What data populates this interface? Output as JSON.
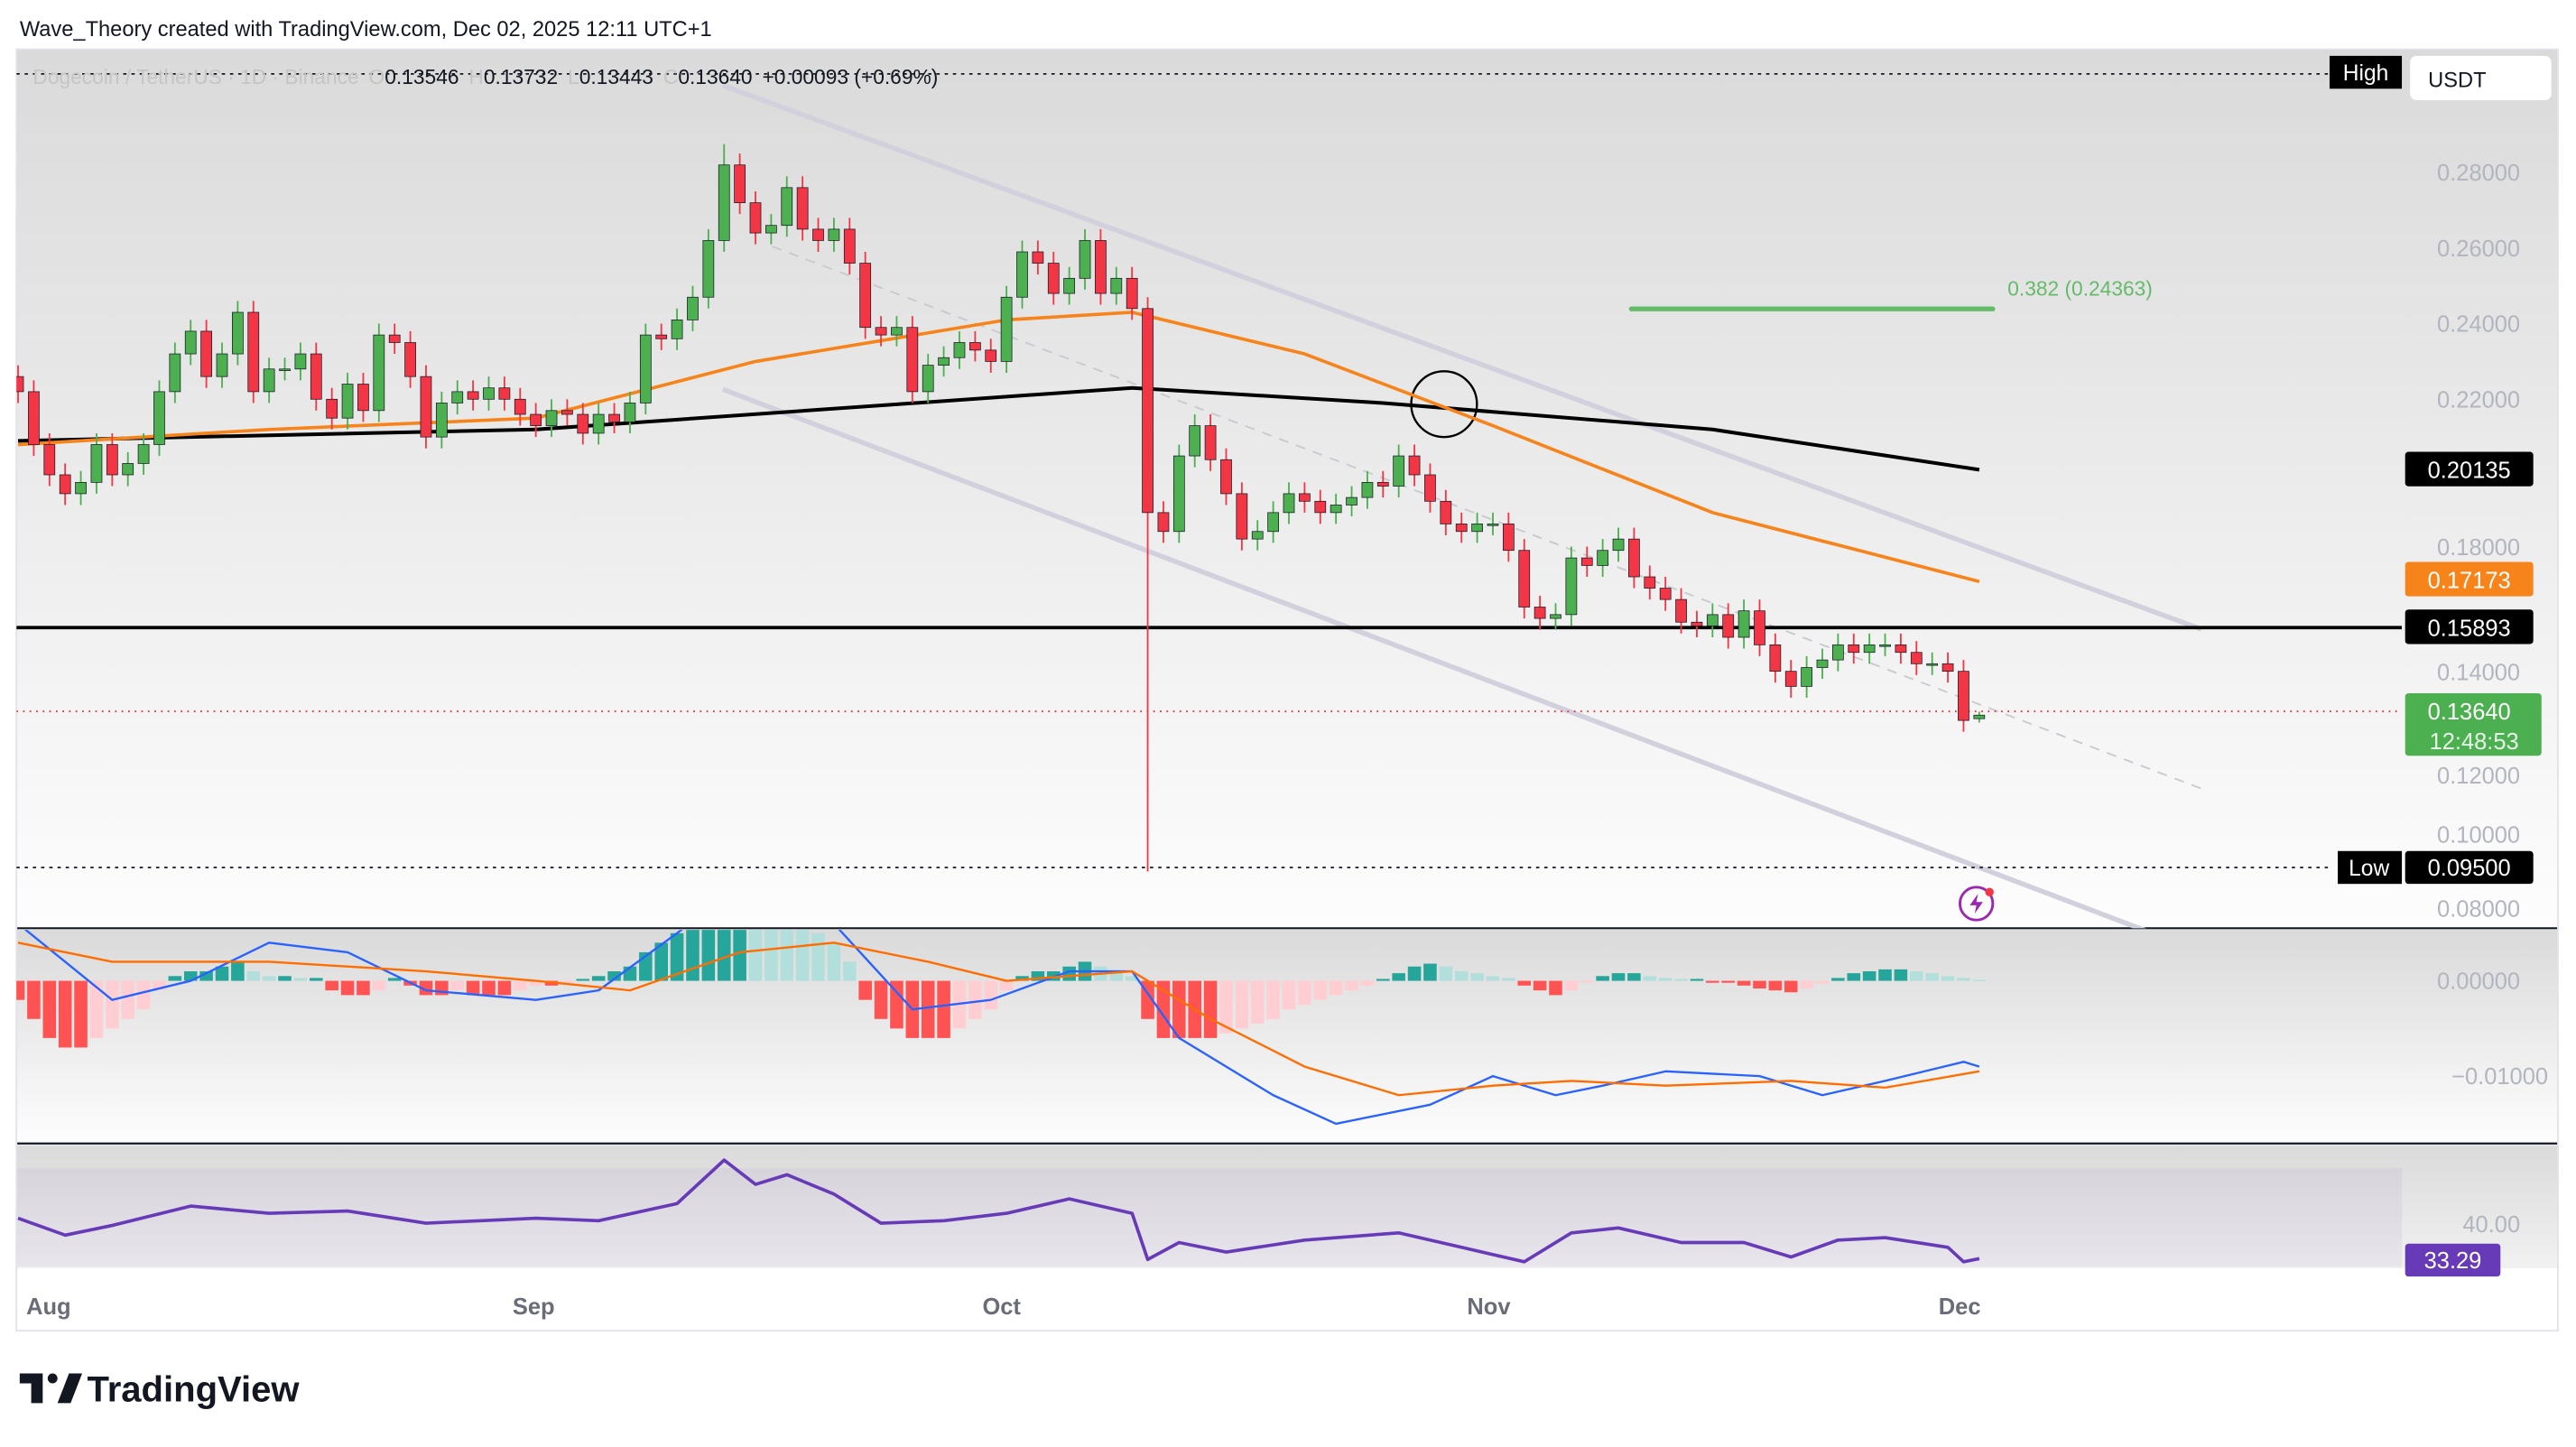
{
  "header": {
    "caption": "Wave_Theory created with TradingView.com, Dec 02, 2025 12:11 UTC+1"
  },
  "legend": {
    "symbol": "Dogecoin / TetherUS · 1D · Binance",
    "o_label": "O",
    "open": "0.13546",
    "h_label": "H",
    "high": "0.13732",
    "l_label": "L",
    "low": "0.13443",
    "c_label": "C",
    "close": "0.13640",
    "change": "+0.00093 (+0.69%)"
  },
  "price_axis": {
    "currency": "USDT",
    "ticks": [
      "0.28000",
      "0.26000",
      "0.24000",
      "0.22000",
      "0.18000",
      "0.14000",
      "0.12000",
      "0.10000",
      "0.08000"
    ],
    "high_tag": "High",
    "low_tag": "Low",
    "low_value": "0.09500",
    "sma200_value": "0.20135",
    "ema50_value": "0.17173",
    "support_value": "0.15893",
    "last_price": "0.13640",
    "countdown": "12:48:53"
  },
  "fib": {
    "label": "0.382 (0.24363)",
    "level": 0.24363
  },
  "macd_axis": {
    "ticks": [
      "0.00000",
      "−0.01000"
    ]
  },
  "rsi_axis": {
    "tick": "40.00",
    "value": "33.29"
  },
  "time_axis": [
    "Aug",
    "Sep",
    "Oct",
    "Nov",
    "Dec"
  ],
  "footer": {
    "brand": "TradingView"
  },
  "colors": {
    "up": "#4caf50",
    "down": "#f23645",
    "ema50": "#f7841a",
    "sma200": "#000000",
    "fib": "#66bb6a",
    "rsi": "#673ab7",
    "macd": "#2962ff",
    "signal": "#ff6d00",
    "channel": "#d1d0dc"
  },
  "chart_data": {
    "type": "candlestick",
    "symbol": "Dogecoin / TetherUS",
    "interval": "1D",
    "ylim": [
      0.08,
      0.29
    ],
    "dates": [
      "Jul 30",
      "Jul 31",
      "Aug 1",
      "Aug 2",
      "Aug 3",
      "Aug 4",
      "Aug 5",
      "Aug 6",
      "Aug 7",
      "Aug 8",
      "Aug 9",
      "Aug 10",
      "Aug 11",
      "Aug 12",
      "Aug 13",
      "Aug 14",
      "Aug 15",
      "Aug 16",
      "Aug 17",
      "Aug 18",
      "Aug 19",
      "Aug 20",
      "Aug 21",
      "Aug 22",
      "Aug 23",
      "Aug 24",
      "Aug 25",
      "Aug 26",
      "Aug 27",
      "Aug 28",
      "Aug 29",
      "Aug 30",
      "Aug 31",
      "Sep 1",
      "Sep 2",
      "Sep 3",
      "Sep 4",
      "Sep 5",
      "Sep 6",
      "Sep 7",
      "Sep 8",
      "Sep 9",
      "Sep 10",
      "Sep 11",
      "Sep 12",
      "Sep 13",
      "Sep 14",
      "Sep 15",
      "Sep 16",
      "Sep 17",
      "Sep 18",
      "Sep 19",
      "Sep 20",
      "Sep 21",
      "Sep 22",
      "Sep 23",
      "Sep 24",
      "Sep 25",
      "Sep 26",
      "Sep 27",
      "Sep 28",
      "Sep 29",
      "Sep 30",
      "Oct 1",
      "Oct 2",
      "Oct 3",
      "Oct 4",
      "Oct 5",
      "Oct 6",
      "Oct 7",
      "Oct 8",
      "Oct 9",
      "Oct 10",
      "Oct 11",
      "Oct 12",
      "Oct 13",
      "Oct 14",
      "Oct 15",
      "Oct 16",
      "Oct 17",
      "Oct 18",
      "Oct 19",
      "Oct 20",
      "Oct 21",
      "Oct 22",
      "Oct 23",
      "Oct 24",
      "Oct 25",
      "Oct 26",
      "Oct 27",
      "Oct 28",
      "Oct 29",
      "Oct 30",
      "Oct 31",
      "Nov 1",
      "Nov 2",
      "Nov 3",
      "Nov 4",
      "Nov 5",
      "Nov 6",
      "Nov 7",
      "Nov 8",
      "Nov 9",
      "Nov 10",
      "Nov 11",
      "Nov 12",
      "Nov 13",
      "Nov 14",
      "Nov 15",
      "Nov 16",
      "Nov 17",
      "Nov 18",
      "Nov 19",
      "Nov 20",
      "Nov 21",
      "Nov 22",
      "Nov 23",
      "Nov 24",
      "Nov 25",
      "Nov 26",
      "Nov 27",
      "Nov 28",
      "Nov 29",
      "Nov 30",
      "Dec 1",
      "Dec 2"
    ],
    "closes": [
      0.222,
      0.208,
      0.2,
      0.195,
      0.198,
      0.208,
      0.2,
      0.203,
      0.208,
      0.222,
      0.232,
      0.238,
      0.226,
      0.232,
      0.243,
      0.222,
      0.228,
      0.228,
      0.232,
      0.22,
      0.215,
      0.224,
      0.217,
      0.237,
      0.235,
      0.226,
      0.21,
      0.219,
      0.222,
      0.22,
      0.223,
      0.22,
      0.216,
      0.213,
      0.217,
      0.216,
      0.211,
      0.216,
      0.214,
      0.219,
      0.237,
      0.236,
      0.241,
      0.247,
      0.262,
      0.282,
      0.272,
      0.264,
      0.266,
      0.276,
      0.265,
      0.262,
      0.265,
      0.256,
      0.239,
      0.237,
      0.239,
      0.222,
      0.229,
      0.231,
      0.235,
      0.233,
      0.23,
      0.247,
      0.259,
      0.256,
      0.248,
      0.252,
      0.262,
      0.248,
      0.252,
      0.244,
      0.19,
      0.185,
      0.205,
      0.213,
      0.204,
      0.195,
      0.183,
      0.185,
      0.19,
      0.195,
      0.193,
      0.19,
      0.192,
      0.194,
      0.198,
      0.197,
      0.205,
      0.2,
      0.193,
      0.187,
      0.185,
      0.187,
      0.187,
      0.18,
      0.165,
      0.162,
      0.163,
      0.178,
      0.176,
      0.18,
      0.183,
      0.173,
      0.17,
      0.167,
      0.161,
      0.16,
      0.163,
      0.157,
      0.164,
      0.155,
      0.148,
      0.144,
      0.149,
      0.151,
      0.155,
      0.153,
      0.155,
      0.155,
      0.153,
      0.15,
      0.15,
      0.148,
      0.135,
      0.1364
    ],
    "last_candle": {
      "open": 0.13546,
      "high": 0.13732,
      "low": 0.13443,
      "close": 0.1364
    },
    "period_high": {
      "date": "Sep 13",
      "value": 0.2875
    },
    "period_low": {
      "date": "Oct 10",
      "value": 0.095
    },
    "ema50": [
      [
        "Jul 30",
        0.208
      ],
      [
        "Aug 15",
        0.212
      ],
      [
        "Sep 1",
        0.215
      ],
      [
        "Sep 15",
        0.23
      ],
      [
        "Oct 1",
        0.241
      ],
      [
        "Oct 9",
        0.243
      ],
      [
        "Oct 20",
        0.232
      ],
      [
        "Nov 1",
        0.213
      ],
      [
        "Nov 15",
        0.19
      ],
      [
        "Dec 2",
        0.17173
      ]
    ],
    "sma200": [
      [
        "Jul 30",
        0.209
      ],
      [
        "Sep 1",
        0.212
      ],
      [
        "Oct 9",
        0.223
      ],
      [
        "Oct 25",
        0.219
      ],
      [
        "Nov 15",
        0.212
      ],
      [
        "Dec 2",
        0.20135
      ]
    ],
    "support_level": 0.15893,
    "macd": {
      "ylim": [
        -0.0175,
        0.0055
      ],
      "histogram": [
        -0.002,
        -0.004,
        -0.006,
        -0.007,
        -0.007,
        -0.006,
        -0.005,
        -0.004,
        -0.003,
        -0.001,
        0.0005,
        0.001,
        0.001,
        0.0015,
        0.002,
        0.001,
        0.0005,
        0.0005,
        0.0003,
        0.0003,
        -0.001,
        -0.0015,
        -0.0015,
        -0.001,
        0.0003,
        -0.0005,
        -0.0015,
        -0.0015,
        -0.001,
        -0.0015,
        -0.0015,
        -0.0015,
        -0.001,
        -0.0005,
        -0.0005,
        -0.0002,
        0.0002,
        0.0005,
        0.001,
        0.0015,
        0.003,
        0.004,
        0.005,
        0.006,
        0.007,
        0.009,
        0.01,
        0.009,
        0.008,
        0.007,
        0.006,
        0.005,
        0.004,
        0.002,
        -0.002,
        -0.004,
        -0.005,
        -0.006,
        -0.006,
        -0.006,
        -0.005,
        -0.004,
        -0.003,
        -0.001,
        0.0005,
        0.001,
        0.001,
        0.0015,
        0.002,
        0.0015,
        0.001,
        0.0005,
        -0.004,
        -0.006,
        -0.006,
        -0.006,
        -0.006,
        -0.0055,
        -0.005,
        -0.0045,
        -0.004,
        -0.003,
        -0.0025,
        -0.002,
        -0.0015,
        -0.001,
        -0.0005,
        0.0002,
        0.0008,
        0.0015,
        0.0018,
        0.0015,
        0.001,
        0.0008,
        0.0005,
        0.0003,
        -0.0005,
        -0.001,
        -0.0015,
        -0.001,
        -0.0002,
        0.0005,
        0.0008,
        0.0008,
        0.0005,
        0.0003,
        0.0002,
        0.0002,
        -0.0002,
        -0.0002,
        -0.0005,
        -0.0008,
        -0.001,
        -0.0012,
        -0.0008,
        -0.0003,
        0.0003,
        0.0008,
        0.001,
        0.0012,
        0.0012,
        0.001,
        0.0008,
        0.0005,
        0.0003,
        0.0001
      ],
      "macd_line": [
        [
          "Jul 30",
          0.006
        ],
        [
          "Aug 5",
          -0.002
        ],
        [
          "Aug 10",
          0.0
        ],
        [
          "Aug 15",
          0.004
        ],
        [
          "Aug 20",
          0.003
        ],
        [
          "Aug 25",
          -0.001
        ],
        [
          "Sep 1",
          -0.002
        ],
        [
          "Sep 5",
          -0.001
        ],
        [
          "Sep 10",
          0.005
        ],
        [
          "Sep 14",
          0.01
        ],
        [
          "Sep 20",
          0.006
        ],
        [
          "Sep 25",
          -0.003
        ],
        [
          "Sep 30",
          -0.002
        ],
        [
          "Oct 5",
          0.001
        ],
        [
          "Oct 9",
          0.001
        ],
        [
          "Oct 12",
          -0.006
        ],
        [
          "Oct 18",
          -0.012
        ],
        [
          "Oct 22",
          -0.015
        ],
        [
          "Oct 28",
          -0.013
        ],
        [
          "Nov 1",
          -0.01
        ],
        [
          "Nov 5",
          -0.012
        ],
        [
          "Nov 8",
          -0.011
        ],
        [
          "Nov 12",
          -0.0095
        ],
        [
          "Nov 18",
          -0.01
        ],
        [
          "Nov 22",
          -0.012
        ],
        [
          "Nov 26",
          -0.0105
        ],
        [
          "Dec 1",
          -0.0085
        ],
        [
          "Dec 2",
          -0.009
        ]
      ],
      "signal_line": [
        [
          "Jul 30",
          0.004
        ],
        [
          "Aug 5",
          0.002
        ],
        [
          "Aug 15",
          0.002
        ],
        [
          "Aug 25",
          0.001
        ],
        [
          "Sep 1",
          0.0
        ],
        [
          "Sep 7",
          -0.001
        ],
        [
          "Sep 14",
          0.003
        ],
        [
          "Sep 20",
          0.004
        ],
        [
          "Sep 26",
          0.002
        ],
        [
          "Oct 1",
          0.0
        ],
        [
          "Oct 9",
          0.001
        ],
        [
          "Oct 14",
          -0.004
        ],
        [
          "Oct 20",
          -0.009
        ],
        [
          "Oct 26",
          -0.012
        ],
        [
          "Nov 1",
          -0.011
        ],
        [
          "Nov 6",
          -0.0105
        ],
        [
          "Nov 12",
          -0.011
        ],
        [
          "Nov 20",
          -0.0105
        ],
        [
          "Nov 26",
          -0.0112
        ],
        [
          "Dec 2",
          -0.0095
        ]
      ]
    },
    "rsi": {
      "band": [
        30,
        70
      ],
      "values": [
        [
          "Jul 30",
          50
        ],
        [
          "Aug 2",
          43
        ],
        [
          "Aug 5",
          47
        ],
        [
          "Aug 10",
          55
        ],
        [
          "Aug 15",
          52
        ],
        [
          "Aug 20",
          53
        ],
        [
          "Aug 25",
          48
        ],
        [
          "Sep 1",
          50
        ],
        [
          "Sep 5",
          49
        ],
        [
          "Sep 10",
          56
        ],
        [
          "Sep 13",
          74
        ],
        [
          "Sep 15",
          64
        ],
        [
          "Sep 17",
          68
        ],
        [
          "Sep 20",
          60
        ],
        [
          "Sep 23",
          48
        ],
        [
          "Sep 27",
          49
        ],
        [
          "Oct 1",
          52
        ],
        [
          "Oct 5",
          58
        ],
        [
          "Oct 9",
          52
        ],
        [
          "Oct 10",
          33
        ],
        [
          "Oct 12",
          40
        ],
        [
          "Oct 15",
          36
        ],
        [
          "Oct 20",
          41
        ],
        [
          "Oct 26",
          44
        ],
        [
          "Oct 30",
          38
        ],
        [
          "Nov 3",
          32
        ],
        [
          "Nov 6",
          44
        ],
        [
          "Nov 9",
          46
        ],
        [
          "Nov 13",
          40
        ],
        [
          "Nov 17",
          40
        ],
        [
          "Nov 20",
          34
        ],
        [
          "Nov 23",
          41
        ],
        [
          "Nov 26",
          42
        ],
        [
          "Nov 30",
          38
        ],
        [
          "Dec 1",
          32
        ],
        [
          "Dec 2",
          33.29
        ]
      ]
    }
  }
}
